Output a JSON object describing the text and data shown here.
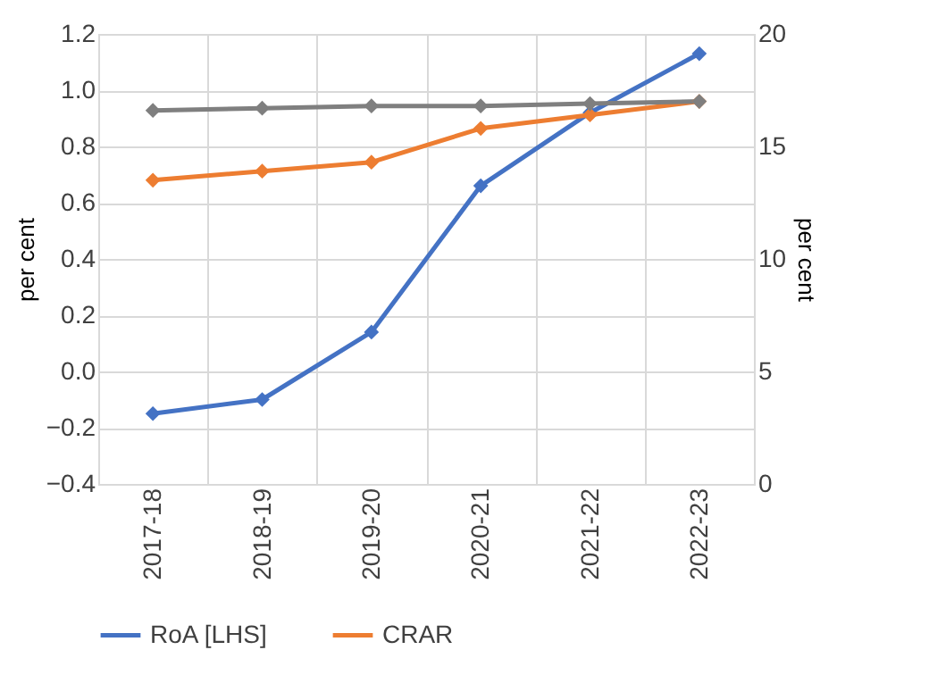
{
  "chart_data": {
    "type": "line",
    "categories": [
      "2017-18",
      "2018-19",
      "2019-20",
      "2020-21",
      "2021-22",
      "2022-23"
    ],
    "series": [
      {
        "name": "RoA [LHS]",
        "color": "#4472c4",
        "values": [
          -0.15,
          -0.1,
          0.14,
          0.66,
          0.92,
          1.13
        ]
      },
      {
        "name": "CRAR",
        "color": "#ed7d31",
        "axis": "y2",
        "values": [
          13.5,
          13.9,
          14.3,
          15.8,
          16.4,
          17.0
        ]
      },
      {
        "color": "#7f7f7f",
        "axis": "y2",
        "values": [
          16.6,
          16.7,
          16.8,
          16.8,
          16.9,
          17.0
        ]
      }
    ],
    "ylabel": "per cent",
    "y2label": "per cent",
    "ylim": [
      -0.4,
      1.2
    ],
    "yticks": [
      {
        "value": -0.4,
        "label": "−0.4"
      },
      {
        "value": -0.2,
        "label": "−0.2"
      },
      {
        "value": 0,
        "label": "0.0"
      },
      0.2,
      0.4,
      0.6,
      0.8,
      {
        "value": 1,
        "label": "1.0"
      },
      1.2
    ],
    "y2lim": [
      0,
      20
    ],
    "y2ticks": [
      0,
      5,
      10,
      15,
      20
    ],
    "grid": true,
    "legend": "bottom",
    "marker": "diamond",
    "line_style": "solid"
  }
}
